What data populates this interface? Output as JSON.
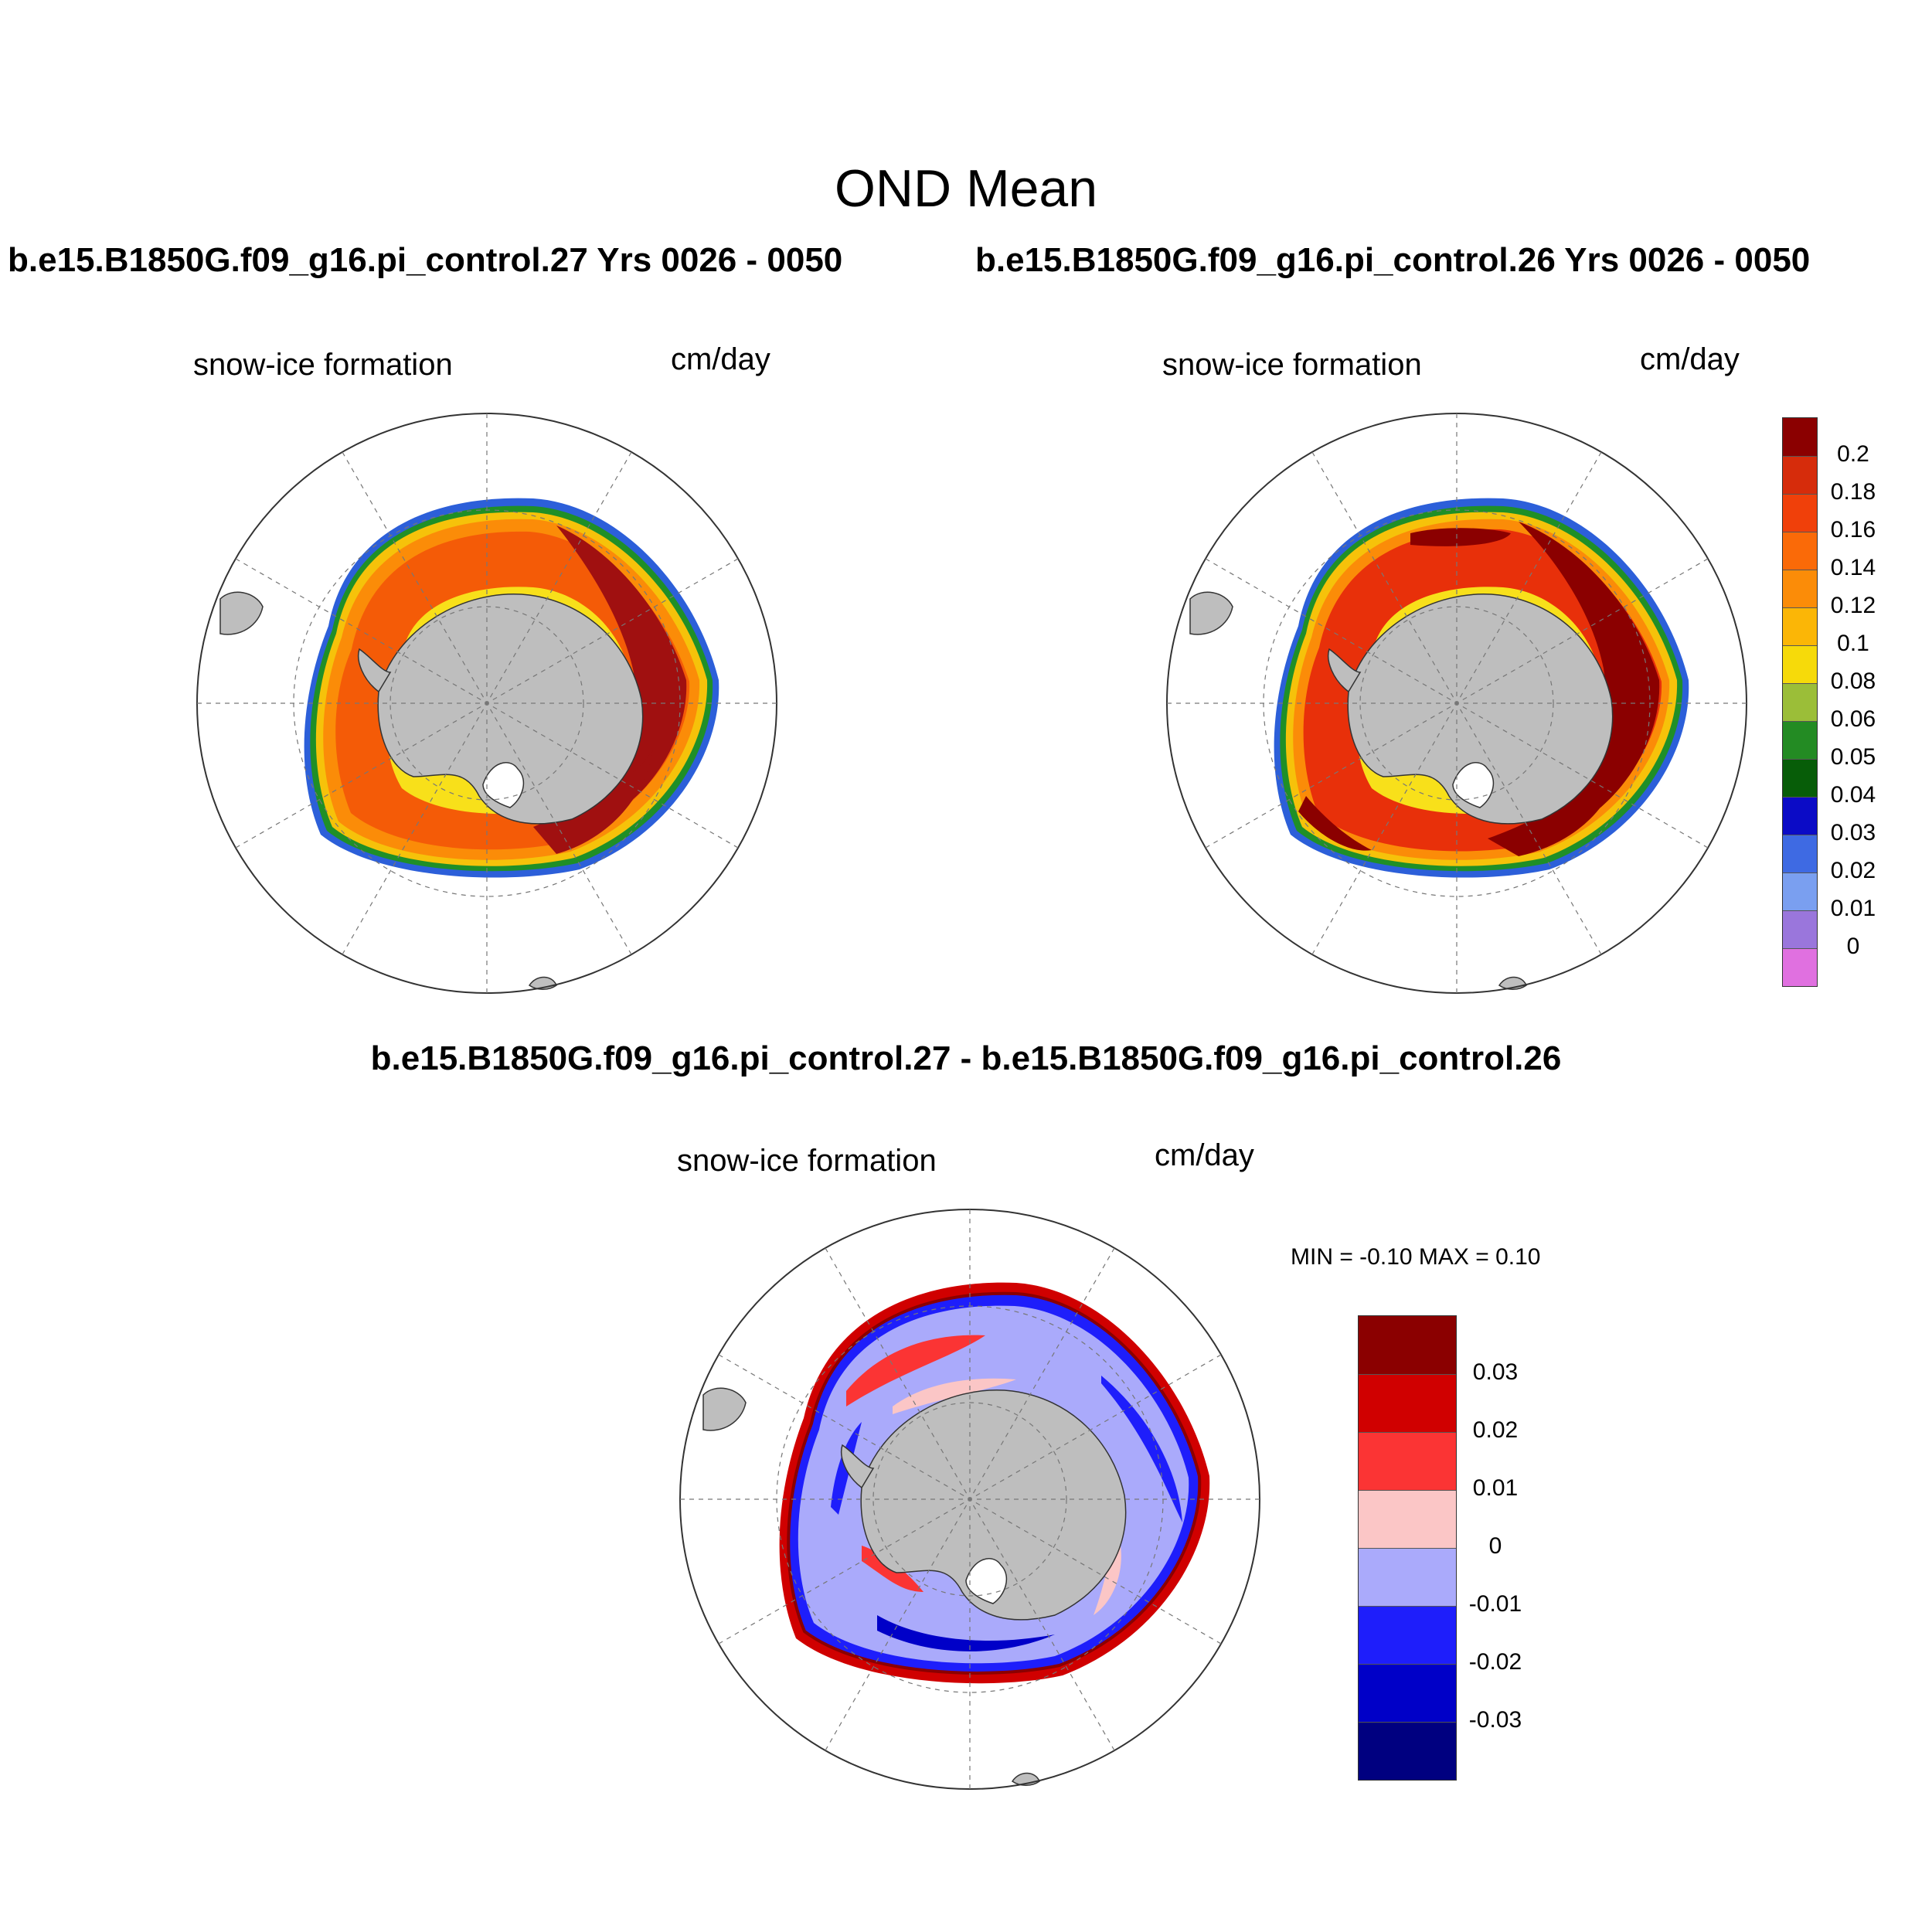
{
  "main_title": "OND Mean",
  "panels": [
    {
      "title": "b.e15.B1850G.f09_g16.pi_control.27  Yrs 0026 - 0050",
      "variable": "snow-ice formation",
      "units": "cm/day"
    },
    {
      "title": "b.e15.B1850G.f09_g16.pi_control.26  Yrs 0026 - 0050",
      "variable": "snow-ice formation",
      "units": "cm/day"
    },
    {
      "title": "b.e15.B1850G.f09_g16.pi_control.27 - b.e15.B1850G.f09_g16.pi_control.26",
      "variable": "snow-ice formation",
      "units": "cm/day",
      "min_max": "MIN =  -0.10 MAX =   0.10"
    }
  ],
  "colorbar_top": {
    "labels": [
      "0.2",
      "0.18",
      "0.16",
      "0.14",
      "0.12",
      "0.1",
      "0.08",
      "0.06",
      "0.05",
      "0.04",
      "0.03",
      "0.02",
      "0.01",
      "0"
    ],
    "colors": [
      "#8b0000",
      "#d62c0b",
      "#f0400a",
      "#fa6a08",
      "#fb8c08",
      "#fbb606",
      "#f6da0a",
      "#9bbe38",
      "#238b23",
      "#075d08",
      "#0b0bc6",
      "#3e6ae3",
      "#7a9ff0",
      "#9a76dc",
      "#e070e0"
    ]
  },
  "colorbar_diff": {
    "labels": [
      "0.03",
      "0.02",
      "0.01",
      "0",
      "-0.01",
      "-0.02",
      "-0.03"
    ],
    "colors": [
      "#8b0000",
      "#d00000",
      "#fb3434",
      "#fbc6c6",
      "#aaaafb",
      "#1e1efb",
      "#0000c8",
      "#000080"
    ]
  },
  "colors": {
    "land": "#bebebe",
    "grid": "#777777"
  }
}
